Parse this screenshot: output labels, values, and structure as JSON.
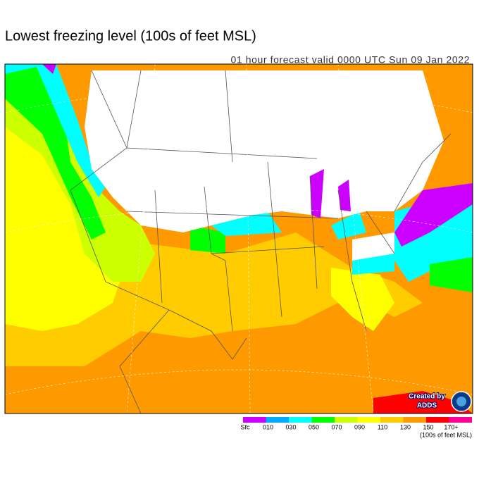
{
  "header": {
    "title": "Lowest freezing level (100s of feet MSL)",
    "subtitle": "01 hour forecast valid 0000 UTC Sun 09 Jan 2022"
  },
  "legend": {
    "items": [
      {
        "label": "Sfc",
        "color": "#cc00ff"
      },
      {
        "label": "010",
        "color": "#00aaff"
      },
      {
        "label": "030",
        "color": "#00ffff"
      },
      {
        "label": "050",
        "color": "#00ff00"
      },
      {
        "label": "070",
        "color": "#ccff00"
      },
      {
        "label": "090",
        "color": "#ffff00"
      },
      {
        "label": "110",
        "color": "#ffcc00"
      },
      {
        "label": "130",
        "color": "#ff9900"
      },
      {
        "label": "150",
        "color": "#ff0000"
      },
      {
        "label": "170+",
        "color": "#ff0099"
      }
    ],
    "units": "(100s of feet MSL)"
  },
  "credit": {
    "line1": "Created by",
    "line2": "ADDS"
  }
}
